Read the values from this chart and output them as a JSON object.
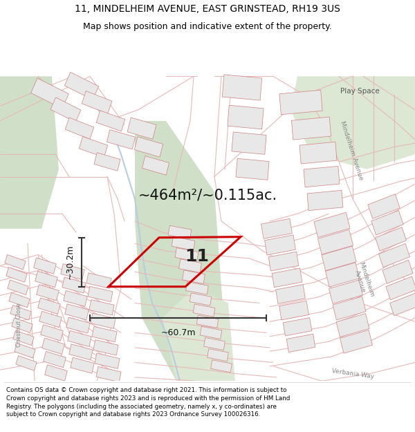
{
  "title_line1": "11, MINDELHEIM AVENUE, EAST GRINSTEAD, RH19 3US",
  "title_line2": "Map shows position and indicative extent of the property.",
  "area_text": "~464m²/~0.115ac.",
  "width_label": "~60.7m",
  "height_label": "~30.2m",
  "plot_number": "11",
  "footer_text": "Contains OS data © Crown copyright and database right 2021. This information is subject to Crown copyright and database rights 2023 and is reproduced with the permission of HM Land Registry. The polygons (including the associated geometry, namely x, y co-ordinates) are subject to Crown copyright and database rights 2023 Ordnance Survey 100026316.",
  "map_bg": "#f7f4f0",
  "road_color": "#e8b8b8",
  "building_face": "#e8e8e8",
  "building_edge": "#d08080",
  "plot_color": "#cc0000",
  "green1": "#d0dfc8",
  "green2": "#dce8d4",
  "blue_stream": "#b8cce0",
  "label_color": "#888888",
  "arrow_color": "#333333",
  "footer_bg": "#ffffff",
  "title_fontsize": 10,
  "subtitle_fontsize": 9
}
